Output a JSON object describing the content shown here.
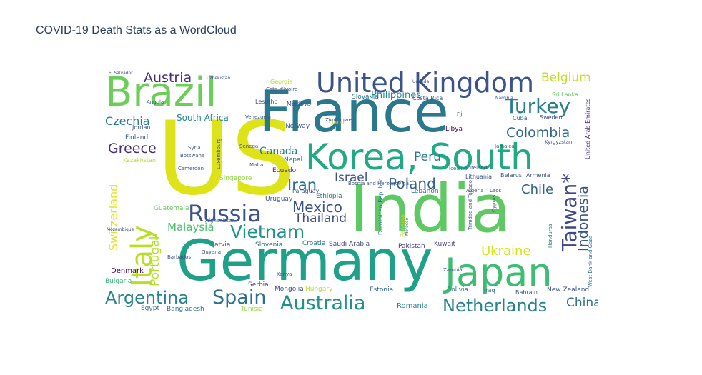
{
  "title": "COVID-19 Death Stats as a WordCloud",
  "chart_data": {
    "type": "wordcloud",
    "title": "COVID-19 Death Stats as a WordCloud",
    "colormap": "viridis",
    "words": [
      {
        "text": "US",
        "weight": 100,
        "color": "#dde318",
        "orientation": "horizontal"
      },
      {
        "text": "India",
        "weight": 66,
        "color": "#5ec962",
        "orientation": "horizontal"
      },
      {
        "text": "Germany",
        "weight": 58,
        "color": "#1fa088",
        "orientation": "horizontal"
      },
      {
        "text": "France",
        "weight": 56,
        "color": "#2a788e",
        "orientation": "horizontal"
      },
      {
        "text": "Brazil",
        "weight": 45,
        "color": "#6ccd5a",
        "orientation": "horizontal"
      },
      {
        "text": "Japan",
        "weight": 41,
        "color": "#3fbc73",
        "orientation": "horizontal"
      },
      {
        "text": "Korea, South",
        "weight": 38,
        "color": "#22a884",
        "orientation": "horizontal"
      },
      {
        "text": "United Kingdom",
        "weight": 28,
        "color": "#3b528b",
        "orientation": "horizontal"
      },
      {
        "text": "Italy",
        "weight": 30,
        "color": "#b8de29",
        "orientation": "vertical"
      },
      {
        "text": "Russia",
        "weight": 24,
        "color": "#3b528b",
        "orientation": "horizontal"
      },
      {
        "text": "Vietnam",
        "weight": 20,
        "color": "#20928c",
        "orientation": "horizontal"
      },
      {
        "text": "Turkey",
        "weight": 20,
        "color": "#287c8e",
        "orientation": "horizontal"
      },
      {
        "text": "Taiwan*",
        "weight": 20,
        "color": "#404688",
        "orientation": "vertical"
      },
      {
        "text": "Argentina",
        "weight": 19,
        "color": "#26828e",
        "orientation": "horizontal"
      },
      {
        "text": "Spain",
        "weight": 21,
        "color": "#2d708e",
        "orientation": "horizontal"
      },
      {
        "text": "Australia",
        "weight": 20,
        "color": "#21918c",
        "orientation": "horizontal"
      },
      {
        "text": "Netherlands",
        "weight": 18,
        "color": "#26828e",
        "orientation": "horizontal"
      },
      {
        "text": "Mexico",
        "weight": 16,
        "color": "#3b528b",
        "orientation": "horizontal"
      },
      {
        "text": "Iran",
        "weight": 17,
        "color": "#2c728e",
        "orientation": "horizontal"
      },
      {
        "text": "Poland",
        "weight": 16,
        "color": "#33638d",
        "orientation": "horizontal"
      },
      {
        "text": "Colombia",
        "weight": 15,
        "color": "#31688e",
        "orientation": "horizontal"
      },
      {
        "text": "Indonesia",
        "weight": 15,
        "color": "#39568c",
        "orientation": "vertical"
      },
      {
        "text": "Ukraine",
        "weight": 15,
        "color": "#d8e219",
        "orientation": "horizontal"
      },
      {
        "text": "Thailand",
        "weight": 14,
        "color": "#3e4a89",
        "orientation": "horizontal"
      },
      {
        "text": "Chile",
        "weight": 15,
        "color": "#33638d",
        "orientation": "horizontal"
      },
      {
        "text": "Greece",
        "weight": 15,
        "color": "#472d7b",
        "orientation": "horizontal"
      },
      {
        "text": "China",
        "weight": 14,
        "color": "#2c728e",
        "orientation": "horizontal"
      },
      {
        "text": "Israel",
        "weight": 14,
        "color": "#3b528b",
        "orientation": "horizontal"
      },
      {
        "text": "Portugal",
        "weight": 13,
        "color": "#b5de2b",
        "orientation": "vertical"
      },
      {
        "text": "Switzerland",
        "weight": 12,
        "color": "#e5e419",
        "orientation": "vertical"
      },
      {
        "text": "Austria",
        "weight": 14,
        "color": "#472c7a",
        "orientation": "horizontal"
      },
      {
        "text": "Belgium",
        "weight": 14,
        "color": "#bddf26",
        "orientation": "horizontal"
      },
      {
        "text": "Czechia",
        "weight": 13,
        "color": "#287c8e",
        "orientation": "horizontal"
      },
      {
        "text": "Peru",
        "weight": 14,
        "color": "#2a788e",
        "orientation": "horizontal"
      },
      {
        "text": "Malaysia",
        "weight": 12,
        "color": "#4ac16d",
        "orientation": "horizontal"
      },
      {
        "text": "Philippines",
        "weight": 12,
        "color": "#23888e",
        "orientation": "horizontal"
      },
      {
        "text": "Canada",
        "weight": 12,
        "color": "#2a788e",
        "orientation": "horizontal"
      },
      {
        "text": "South Africa",
        "weight": 10,
        "color": "#23888e",
        "orientation": "horizontal"
      },
      {
        "text": "Romania",
        "weight": 9,
        "color": "#26828e",
        "orientation": "horizontal"
      },
      {
        "text": "Denmark",
        "weight": 8,
        "color": "#440154",
        "orientation": "horizontal"
      },
      {
        "text": "Saudi Arabia",
        "weight": 8,
        "color": "#3e4a89",
        "orientation": "horizontal"
      },
      {
        "text": "Slovakia",
        "weight": 8,
        "color": "#2c728e",
        "orientation": "horizontal"
      },
      {
        "text": "Egypt",
        "weight": 7,
        "color": "#31688e",
        "orientation": "horizontal"
      },
      {
        "text": "Bangladesh",
        "weight": 7,
        "color": "#2c728e",
        "orientation": "horizontal"
      },
      {
        "text": "Tunisia",
        "weight": 7,
        "color": "#8fd744",
        "orientation": "horizontal"
      },
      {
        "text": "Bulgaria",
        "weight": 7,
        "color": "#35b779",
        "orientation": "horizontal"
      },
      {
        "text": "Sweden",
        "weight": 7,
        "color": "#3e4a89",
        "orientation": "horizontal"
      },
      {
        "text": "Hungary",
        "weight": 7,
        "color": "#b8de29",
        "orientation": "horizontal"
      },
      {
        "text": "Serbia",
        "weight": 7,
        "color": "#414487",
        "orientation": "horizontal"
      },
      {
        "text": "Bolivia",
        "weight": 7,
        "color": "#2c728e",
        "orientation": "horizontal"
      },
      {
        "text": "Slovenia",
        "weight": 7,
        "color": "#31688e",
        "orientation": "horizontal"
      },
      {
        "text": "Latvia",
        "weight": 7,
        "color": "#3b528b",
        "orientation": "horizontal"
      },
      {
        "text": "Croatia",
        "weight": 7,
        "color": "#2a788e",
        "orientation": "horizontal"
      },
      {
        "text": "Kuwait",
        "weight": 7,
        "color": "#414487",
        "orientation": "horizontal"
      },
      {
        "text": "Pakistan",
        "weight": 7,
        "color": "#46337e",
        "orientation": "horizontal"
      },
      {
        "text": "Ecuador",
        "weight": 7,
        "color": "#472d7b",
        "orientation": "horizontal"
      },
      {
        "text": "Nepal",
        "weight": 7,
        "color": "#2c728e",
        "orientation": "horizontal"
      },
      {
        "text": "Norway",
        "weight": 7,
        "color": "#3b528b",
        "orientation": "horizontal"
      },
      {
        "text": "Uruguay",
        "weight": 7,
        "color": "#3b528b",
        "orientation": "horizontal"
      },
      {
        "text": "Lebanon",
        "weight": 7,
        "color": "#2c728e",
        "orientation": "horizontal"
      },
      {
        "text": "Ethiopia",
        "weight": 7,
        "color": "#2c728e",
        "orientation": "horizontal"
      },
      {
        "text": "Paraguay",
        "weight": 7,
        "color": "#3b528b",
        "orientation": "horizontal"
      },
      {
        "text": "Mongolia",
        "weight": 7,
        "color": "#3b528b",
        "orientation": "horizontal"
      },
      {
        "text": "Estonia",
        "weight": 7,
        "color": "#31688e",
        "orientation": "horizontal"
      },
      {
        "text": "Finland",
        "weight": 7,
        "color": "#3b528b",
        "orientation": "horizontal"
      },
      {
        "text": "Jordan",
        "weight": 7,
        "color": "#3b528b",
        "orientation": "horizontal"
      },
      {
        "text": "Singapore",
        "weight": 7,
        "color": "#8fd744",
        "orientation": "horizontal"
      },
      {
        "text": "Guatemala",
        "weight": 7,
        "color": "#6ccd5a",
        "orientation": "horizontal"
      },
      {
        "text": "Kenya",
        "weight": 6,
        "color": "#3b528b",
        "orientation": "horizontal"
      },
      {
        "text": "Iceland",
        "weight": 6,
        "color": "#2c728e",
        "orientation": "horizontal"
      },
      {
        "text": "Lithuania",
        "weight": 6,
        "color": "#3b528b",
        "orientation": "horizontal"
      },
      {
        "text": "Cuba",
        "weight": 6,
        "color": "#31688e",
        "orientation": "horizontal"
      },
      {
        "text": "Libya",
        "weight": 6,
        "color": "#440154",
        "orientation": "horizontal"
      },
      {
        "text": "Sri Lanka",
        "weight": 6,
        "color": "#5ec962",
        "orientation": "horizontal"
      },
      {
        "text": "Bahrain",
        "weight": 6,
        "color": "#3b528b",
        "orientation": "horizontal"
      },
      {
        "text": "New Zealand",
        "weight": 6,
        "color": "#3b528b",
        "orientation": "horizontal"
      },
      {
        "text": "Georgia",
        "weight": 6,
        "color": "#b8de29",
        "orientation": "horizontal"
      },
      {
        "text": "Moldova",
        "weight": 6,
        "color": "#3b528b",
        "orientation": "horizontal"
      },
      {
        "text": "Qatar",
        "weight": 6,
        "color": "#b8de29",
        "orientation": "horizontal"
      },
      {
        "text": "Iraq",
        "weight": 6,
        "color": "#2c728e",
        "orientation": "horizontal"
      },
      {
        "text": "Afghanistan",
        "weight": 5,
        "color": "#31688e",
        "orientation": "horizontal"
      },
      {
        "text": "Panama",
        "weight": 5,
        "color": "#b8de29",
        "orientation": "vertical"
      },
      {
        "text": "Dominican Republic",
        "weight": 5,
        "color": "#2c728e",
        "orientation": "vertical"
      },
      {
        "text": "Morocco",
        "weight": 5,
        "color": "#3b528b",
        "orientation": "vertical"
      },
      {
        "text": "United Arab Emirates",
        "weight": 5,
        "color": "#472d7b",
        "orientation": "vertical"
      },
      {
        "text": "Cyprus",
        "weight": 5,
        "color": "#3b528b",
        "orientation": "vertical"
      },
      {
        "text": "West Bank and Gaza",
        "weight": 5,
        "color": "#2c728e",
        "orientation": "vertical"
      },
      {
        "text": "Honduras",
        "weight": 5,
        "color": "#2c728e",
        "orientation": "vertical"
      },
      {
        "text": "Algeria",
        "weight": 5,
        "color": "#3b528b",
        "orientation": "horizontal"
      },
      {
        "text": "Armenia",
        "weight": 5,
        "color": "#3b528b",
        "orientation": "horizontal"
      },
      {
        "text": "Belarus",
        "weight": 5,
        "color": "#3b528b",
        "orientation": "horizontal"
      },
      {
        "text": "Costa Rica",
        "weight": 5,
        "color": "#3b528b",
        "orientation": "horizontal"
      },
      {
        "text": "Ireland",
        "weight": 5,
        "color": "#3b528b",
        "orientation": "horizontal"
      },
      {
        "text": "Kazakhstan",
        "weight": 5,
        "color": "#b8de29",
        "orientation": "horizontal"
      },
      {
        "text": "Uzbekistan",
        "weight": 4,
        "color": "#3b528b",
        "orientation": "horizontal"
      },
      {
        "text": "Uganda",
        "weight": 4,
        "color": "#3b528b",
        "orientation": "horizontal"
      },
      {
        "text": "Zambia",
        "weight": 4,
        "color": "#3b528b",
        "orientation": "horizontal"
      },
      {
        "text": "Namibia",
        "weight": 4,
        "color": "#3b528b",
        "orientation": "horizontal"
      },
      {
        "text": "Kyrgyzstan",
        "weight": 4,
        "color": "#3b528b",
        "orientation": "horizontal"
      },
      {
        "text": "Jamaica",
        "weight": 4,
        "color": "#3b528b",
        "orientation": "horizontal"
      },
      {
        "text": "Mozambique",
        "weight": 4,
        "color": "#3b528b",
        "orientation": "horizontal"
      },
      {
        "text": "Zimbabwe",
        "weight": 4,
        "color": "#3b528b",
        "orientation": "horizontal"
      },
      {
        "text": "El Salvador",
        "weight": 4,
        "color": "#3b528b",
        "orientation": "horizontal"
      },
      {
        "text": "Angola",
        "weight": 4,
        "color": "#3b528b",
        "orientation": "horizontal"
      },
      {
        "text": "Lesotho",
        "weight": 4,
        "color": "#3b528b",
        "orientation": "horizontal"
      },
      {
        "text": "Cote d'Ivoire",
        "weight": 4,
        "color": "#3b528b",
        "orientation": "horizontal"
      },
      {
        "text": "Venezuela",
        "weight": 4,
        "color": "#3b528b",
        "orientation": "horizontal"
      },
      {
        "text": "Cameroon",
        "weight": 4,
        "color": "#3b528b",
        "orientation": "horizontal"
      },
      {
        "text": "Syria",
        "weight": 4,
        "color": "#3b528b",
        "orientation": "horizontal"
      },
      {
        "text": "Senegal",
        "weight": 4,
        "color": "#3b528b",
        "orientation": "horizontal"
      },
      {
        "text": "Malta",
        "weight": 4,
        "color": "#3b528b",
        "orientation": "horizontal"
      },
      {
        "text": "Laos",
        "weight": 4,
        "color": "#3b528b",
        "orientation": "horizontal"
      },
      {
        "text": "Botswana",
        "weight": 4,
        "color": "#3b528b",
        "orientation": "horizontal"
      },
      {
        "text": "Fiji",
        "weight": 4,
        "color": "#3b528b",
        "orientation": "horizontal"
      },
      {
        "text": "Guyana",
        "weight": 4,
        "color": "#3b528b",
        "orientation": "horizontal"
      },
      {
        "text": "Barbados",
        "weight": 4,
        "color": "#3b528b",
        "orientation": "horizontal"
      },
      {
        "text": "Bosnia and Herzegovina",
        "weight": 4,
        "color": "#3b528b",
        "orientation": "horizontal"
      },
      {
        "text": "Trinidad and Tobago",
        "weight": 4,
        "color": "#3b528b",
        "orientation": "vertical"
      },
      {
        "text": "Luxembourg",
        "weight": 4,
        "color": "#3b528b",
        "orientation": "vertical"
      }
    ]
  }
}
